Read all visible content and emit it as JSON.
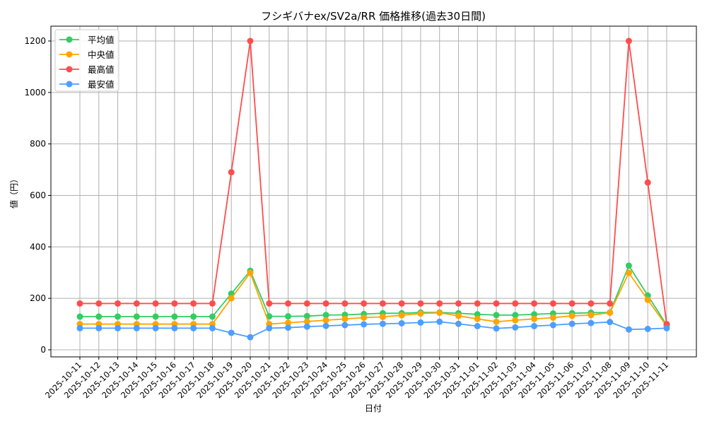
{
  "chart_data": {
    "type": "line",
    "title": "フシギバナex/SV2a/RR 価格推移(過去30日間)",
    "xlabel": "日付",
    "ylabel": "値（円）",
    "ylim": [
      0,
      1260
    ],
    "yticks": [
      0,
      200,
      400,
      600,
      800,
      1000,
      1200
    ],
    "grid": true,
    "legend_position": "top-left",
    "x": [
      "2025-10-11",
      "2025-10-12",
      "2025-10-13",
      "2025-10-14",
      "2025-10-15",
      "2025-10-16",
      "2025-10-17",
      "2025-10-18",
      "2025-10-19",
      "2025-10-20",
      "2025-10-21",
      "2025-10-22",
      "2025-10-23",
      "2025-10-24",
      "2025-10-25",
      "2025-10-26",
      "2025-10-27",
      "2025-10-28",
      "2025-10-29",
      "2025-10-30",
      "2025-10-31",
      "2025-11-01",
      "2025-11-02",
      "2025-11-03",
      "2025-11-04",
      "2025-11-05",
      "2025-11-06",
      "2025-11-07",
      "2025-11-08",
      "2025-11-09",
      "2025-11-10",
      "2025-11-11"
    ],
    "series": [
      {
        "name": "平均値",
        "color": "#33cc66",
        "values": [
          129,
          129,
          129,
          129,
          129,
          129,
          129,
          129,
          218,
          307,
          130,
          130,
          131,
          135,
          136,
          139,
          142,
          142,
          145,
          145,
          142,
          138,
          135,
          135,
          138,
          141,
          142,
          144,
          145,
          327,
          211,
          96
        ]
      },
      {
        "name": "中央値",
        "color": "#ffa500",
        "values": [
          100,
          100,
          100,
          100,
          100,
          100,
          100,
          100,
          200,
          299,
          100,
          105,
          110,
          115,
          120,
          125,
          128,
          134,
          141,
          144,
          132,
          120,
          109,
          115,
          120,
          125,
          132,
          135,
          144,
          299,
          194,
          92
        ]
      },
      {
        "name": "最高値",
        "color": "#ff4d4d",
        "values": [
          180,
          180,
          180,
          180,
          180,
          180,
          180,
          180,
          690,
          1200,
          180,
          180,
          180,
          180,
          180,
          180,
          180,
          180,
          180,
          180,
          180,
          180,
          180,
          180,
          180,
          180,
          180,
          180,
          180,
          1200,
          650,
          100
        ]
      },
      {
        "name": "最安値",
        "color": "#4d9eff",
        "values": [
          84,
          84,
          84,
          84,
          84,
          84,
          84,
          84,
          66,
          49,
          84,
          86,
          90,
          93,
          96,
          99,
          101,
          103,
          106,
          109,
          101,
          92,
          83,
          87,
          92,
          96,
          101,
          104,
          108,
          79,
          81,
          84
        ]
      }
    ]
  }
}
